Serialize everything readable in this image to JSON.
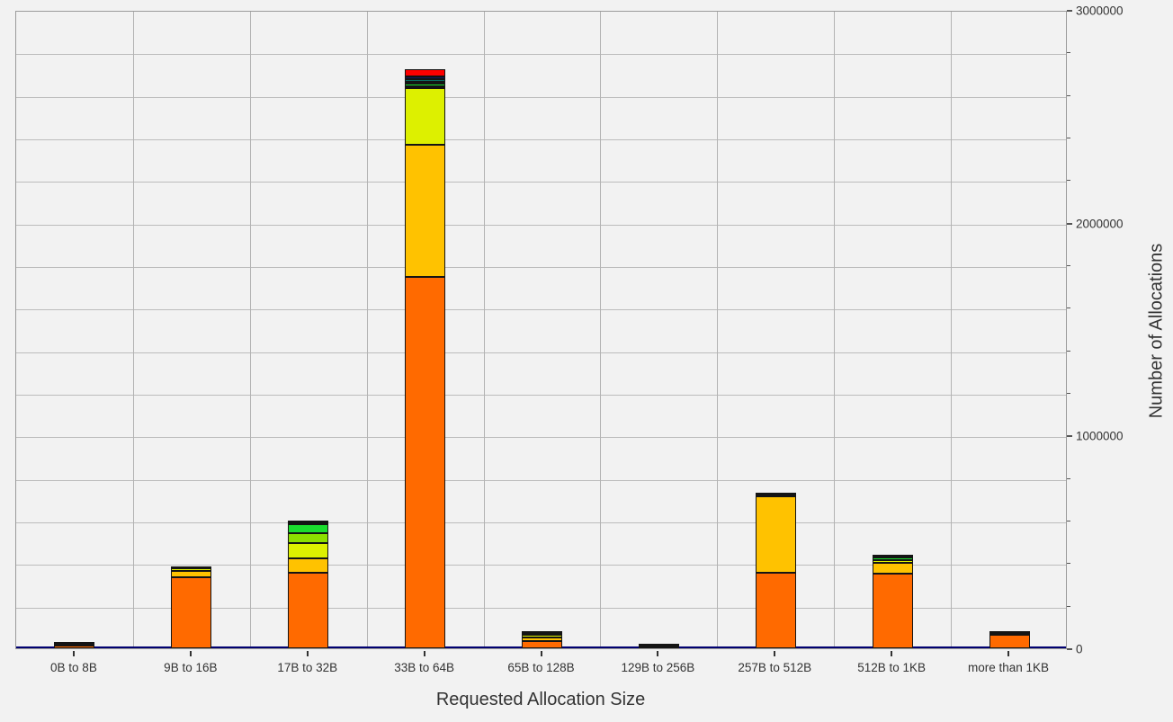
{
  "figure": {
    "background": "#f2f2f2",
    "grid_color": "#bcbcbc",
    "border_color": "#9b9b9b",
    "baseline_color": "#000070",
    "text_color": "#333333"
  },
  "chart_data": {
    "type": "bar",
    "stacked": true,
    "title": "",
    "xlabel": "Requested Allocation Size",
    "ylabel": "Number of Allocations",
    "ylim": [
      0,
      3000000
    ],
    "y_major_step": 1000000,
    "y_minor_step": 200000,
    "y_tick_labels": [
      "0",
      "1000000",
      "2000000",
      "3000000"
    ],
    "grid": true,
    "legend_position": "none",
    "palette": {
      "orange": "#FF6A00",
      "amber": "#FFC200",
      "chartreuse": "#DDF000",
      "yellow_green": "#8CE000",
      "green": "#1ADD2E",
      "dark_green": "#12A545",
      "teal": "#0B6E62",
      "navy": "#131A5A",
      "red": "#FF0000",
      "black": "#141414"
    },
    "categories": [
      "0B to 8B",
      "9B to 16B",
      "17B to 32B",
      "33B to 64B",
      "65B to 128B",
      "129B to 256B",
      "257B to 512B",
      "512B to 1KB",
      "more than 1KB"
    ],
    "bars": [
      {
        "category": "0B to 8B",
        "segments": [
          {
            "color": "orange",
            "value": 14000
          },
          {
            "color": "amber",
            "value": 8000
          },
          {
            "color": "black",
            "value": 8000
          }
        ],
        "total": 30000
      },
      {
        "category": "9B to 16B",
        "segments": [
          {
            "color": "orange",
            "value": 334000
          },
          {
            "color": "amber",
            "value": 30000
          },
          {
            "color": "chartreuse",
            "value": 13000
          },
          {
            "color": "black",
            "value": 8000
          }
        ],
        "total": 385000
      },
      {
        "category": "17B to 32B",
        "segments": [
          {
            "color": "orange",
            "value": 355000
          },
          {
            "color": "amber",
            "value": 68000
          },
          {
            "color": "chartreuse",
            "value": 72000
          },
          {
            "color": "yellow_green",
            "value": 46000
          },
          {
            "color": "green",
            "value": 42000
          },
          {
            "color": "black",
            "value": 17000
          }
        ],
        "total": 600000
      },
      {
        "category": "33B to 64B",
        "segments": [
          {
            "color": "orange",
            "value": 1745000
          },
          {
            "color": "amber",
            "value": 621000
          },
          {
            "color": "chartreuse",
            "value": 266000
          },
          {
            "color": "yellow_green",
            "value": 10000
          },
          {
            "color": "green",
            "value": 10000
          },
          {
            "color": "dark_green",
            "value": 10000
          },
          {
            "color": "teal",
            "value": 13000
          },
          {
            "color": "navy",
            "value": 13000
          },
          {
            "color": "red",
            "value": 34000
          }
        ],
        "total": 2722000
      },
      {
        "category": "65B to 128B",
        "segments": [
          {
            "color": "orange",
            "value": 34000
          },
          {
            "color": "amber",
            "value": 17000
          },
          {
            "color": "chartreuse",
            "value": 13000
          },
          {
            "color": "black",
            "value": 17000
          }
        ],
        "total": 81000
      },
      {
        "category": "129B to 256B",
        "segments": [
          {
            "color": "black",
            "value": 21000
          }
        ],
        "total": 21000
      },
      {
        "category": "257B to 512B",
        "segments": [
          {
            "color": "orange",
            "value": 355000
          },
          {
            "color": "amber",
            "value": 359000
          },
          {
            "color": "black",
            "value": 17000
          }
        ],
        "total": 731000
      },
      {
        "category": "512B to 1KB",
        "segments": [
          {
            "color": "orange",
            "value": 351000
          },
          {
            "color": "amber",
            "value": 51000
          },
          {
            "color": "chartreuse",
            "value": 13000
          },
          {
            "color": "green",
            "value": 13000
          },
          {
            "color": "black",
            "value": 13000
          }
        ],
        "total": 441000
      },
      {
        "category": "more than 1KB",
        "segments": [
          {
            "color": "orange",
            "value": 63000
          },
          {
            "color": "black",
            "value": 17000
          }
        ],
        "total": 80000
      }
    ]
  }
}
